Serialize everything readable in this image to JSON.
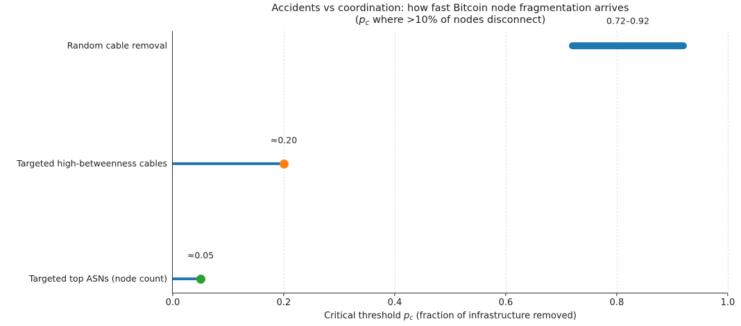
{
  "figure": {
    "title_line1": "Accidents vs coordination: how fast Bitcoin node fragmentation arrives",
    "subtitle": {
      "pre": "(",
      "var": "p",
      "sub": "c",
      "post": " where >10% of nodes disconnect)"
    },
    "xlabel": {
      "pre": "Critical threshold ",
      "var": "p",
      "sub": "c",
      "post": " (fraction of infrastructure removed)"
    }
  },
  "chart_data": {
    "type": "lollipop",
    "title": "Accidents vs coordination: how fast Bitcoin node fragmentation arrives (p_c where >10% of nodes disconnect)",
    "xlabel": "Critical threshold p_c (fraction of infrastructure removed)",
    "ylabel": "",
    "xlim": [
      0.0,
      1.0
    ],
    "grid": "vertical dashed gridlines at each x tick",
    "legend": "none",
    "x_ticks": [
      {
        "value": 0.0,
        "label": "0.0"
      },
      {
        "value": 0.2,
        "label": "0.2"
      },
      {
        "value": 0.4,
        "label": "0.4"
      },
      {
        "value": 0.6,
        "label": "0.6"
      },
      {
        "value": 0.8,
        "label": "0.8"
      },
      {
        "value": 1.0,
        "label": "1.0"
      }
    ],
    "categories": [
      "Random cable removal",
      "Targeted high-betweenness cables",
      "Targeted top ASNs (node count)"
    ],
    "rows": [
      {
        "label": "Random cable removal",
        "kind": "range",
        "min": 0.72,
        "max": 0.92,
        "annotation": "0.72–0.92",
        "bar_color": "#1f77b4"
      },
      {
        "label": "Targeted high-betweenness cables",
        "kind": "point",
        "value": 0.2,
        "annotation": "≈0.20",
        "stem_color": "#1f77b4",
        "dot_color": "#ff7f0e"
      },
      {
        "label": "Targeted top ASNs (node count)",
        "kind": "point",
        "value": 0.05,
        "annotation": "≈0.05",
        "stem_color": "#1f77b4",
        "dot_color": "#2ca02c"
      }
    ],
    "colors": {
      "stem_blue": "#1f77b4",
      "range_blue": "#1f77b4",
      "orange_dot": "#ff7f0e",
      "green_dot": "#2ca02c",
      "gridline": "#dedede",
      "spine": "#2e2e2e",
      "text": "#1c1c1c"
    }
  }
}
